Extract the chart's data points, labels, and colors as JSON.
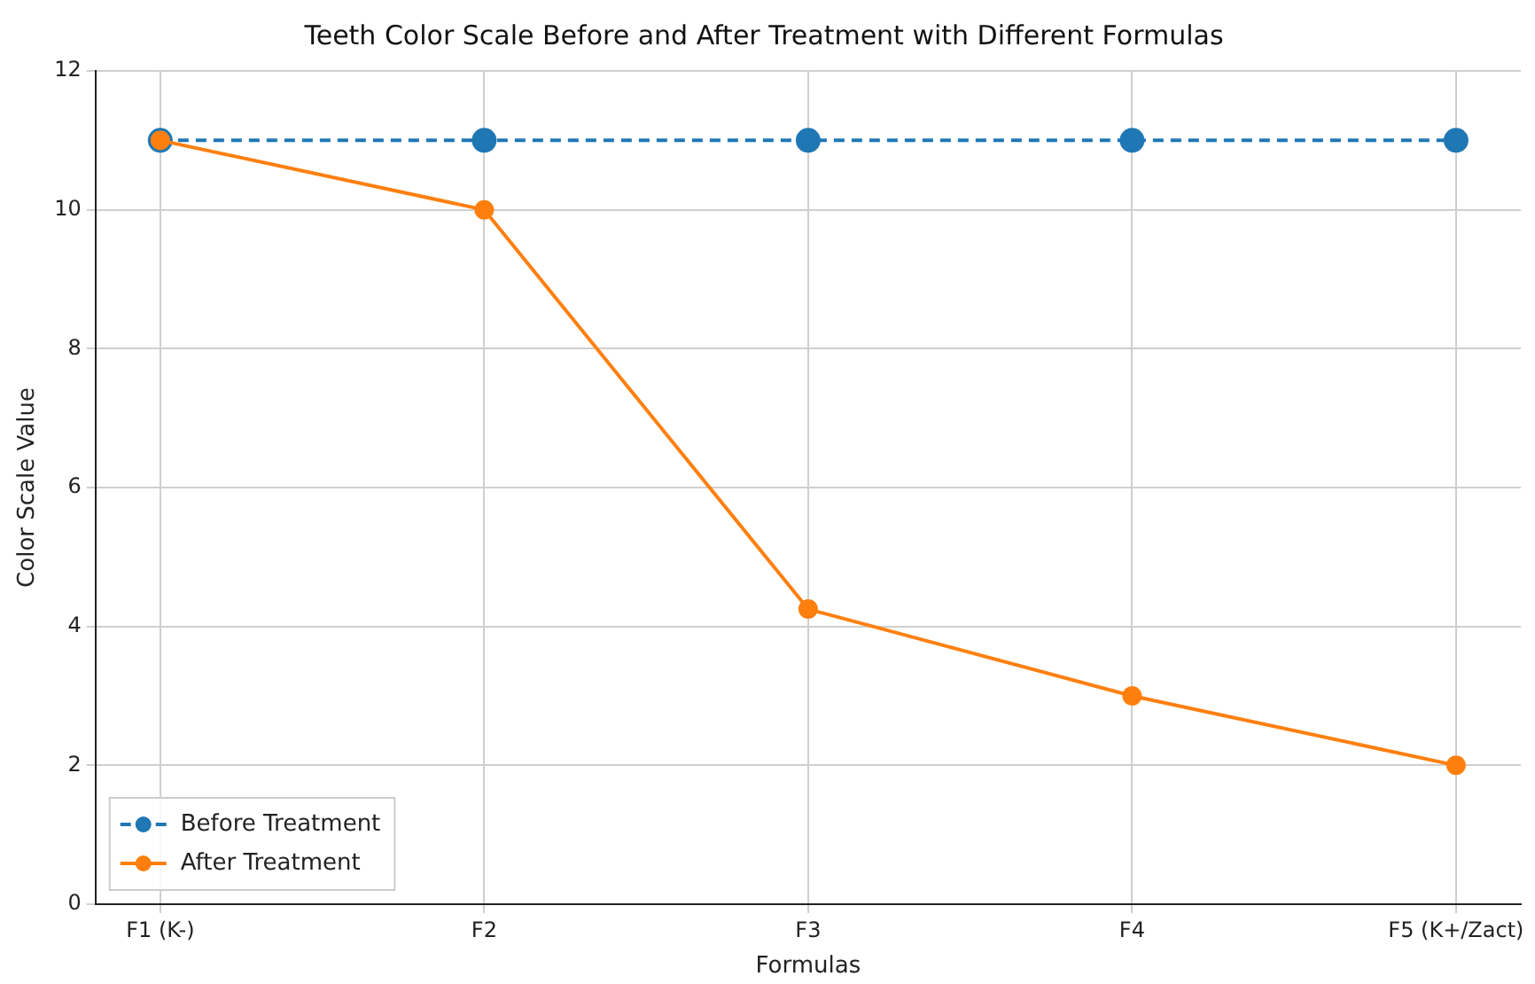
{
  "chart_data": {
    "type": "line",
    "title": "Teeth Color Scale Before and After Treatment with Different Formulas",
    "xlabel": "Formulas",
    "ylabel": "Color Scale Value",
    "categories": [
      "F1 (K-)",
      "F2",
      "F3",
      "F4",
      "F5 (K+/Zact)"
    ],
    "series": [
      {
        "name": "Before Treatment",
        "color": "#1f77b4",
        "values": [
          11,
          11,
          11,
          11,
          11
        ],
        "line_style": "dashed"
      },
      {
        "name": "After Treatment",
        "color": "#ff7f0e",
        "values": [
          11,
          10,
          4.25,
          3,
          2
        ],
        "line_style": "solid"
      }
    ],
    "ylim": [
      0,
      12
    ],
    "yticks": [
      0,
      2,
      4,
      6,
      8,
      10,
      12
    ],
    "grid": true,
    "legend": "bottom left",
    "marker": "circle"
  }
}
